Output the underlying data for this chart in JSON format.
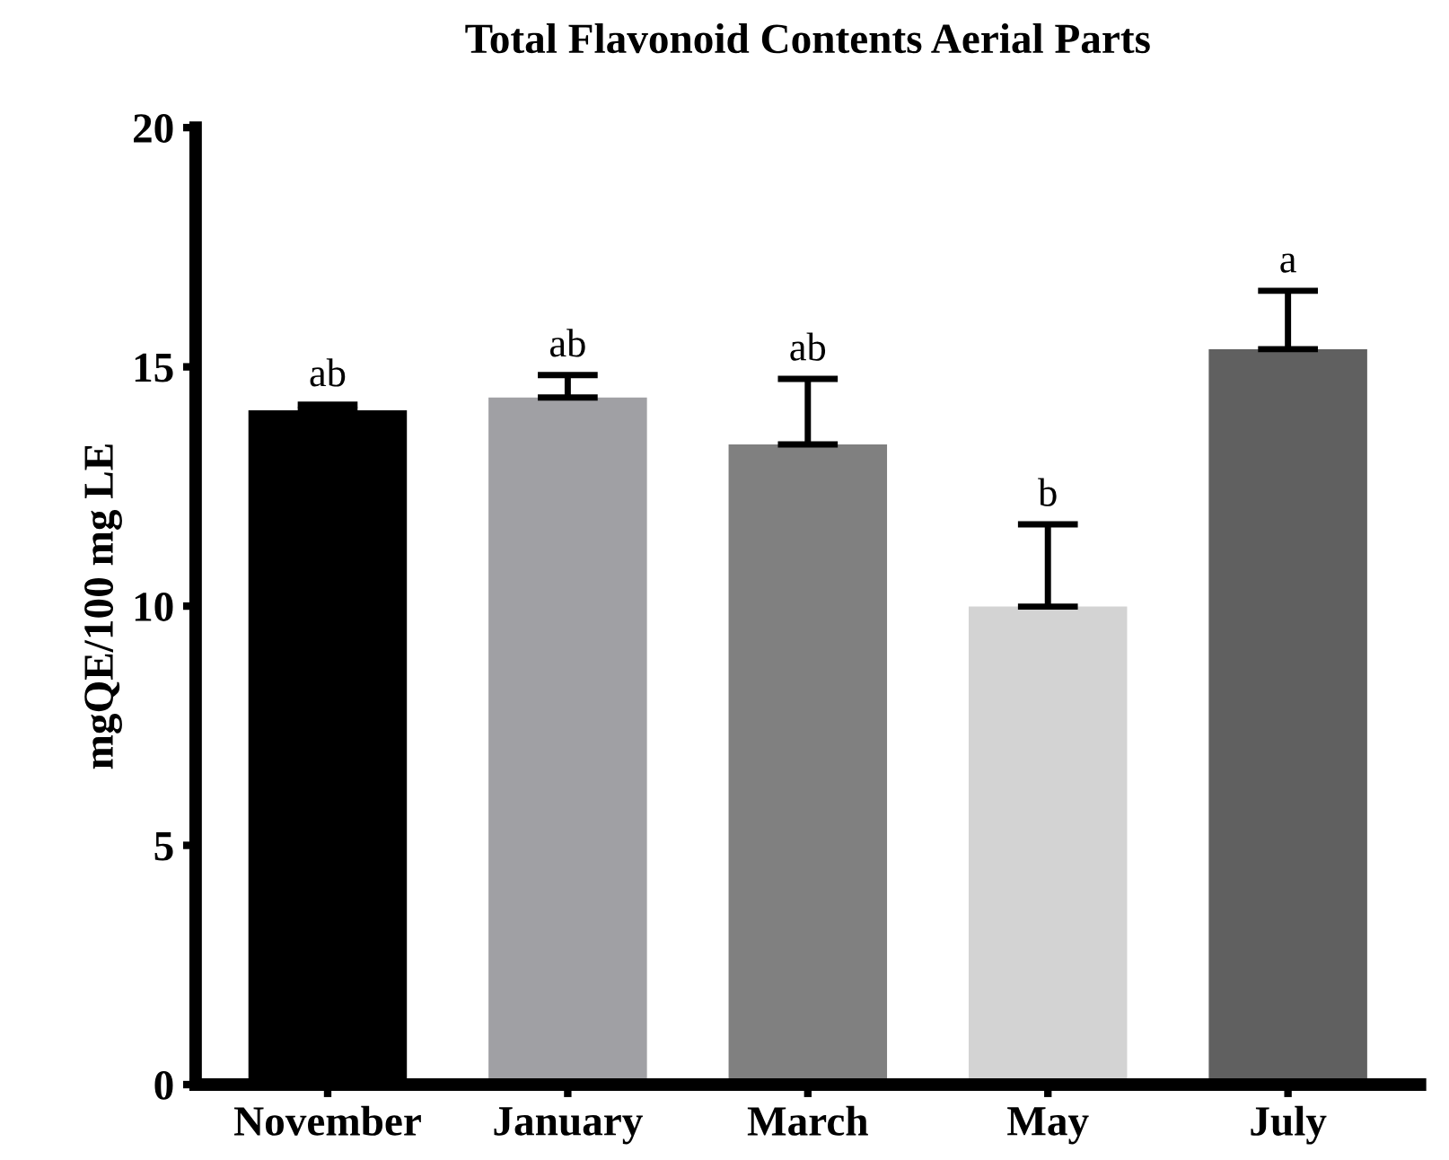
{
  "chart_data": {
    "type": "bar",
    "title": "Total Flavonoid Contents Aerial Parts",
    "ylabel": "mgQE/100 mg LE",
    "categories": [
      "November",
      "January",
      "March",
      "May",
      "July"
    ],
    "values": [
      14.09,
      14.36,
      13.38,
      9.99,
      15.37
    ],
    "colors": [
      "#000000",
      "#a0a0a4",
      "#808080",
      "#d3d3d3",
      "#606060"
    ],
    "errors": [
      [
        14.09,
        14.21
      ],
      [
        14.36,
        14.83
      ],
      [
        13.38,
        14.75
      ],
      [
        9.99,
        11.71
      ],
      [
        15.37,
        16.59
      ]
    ],
    "annotations": [
      "ab",
      "ab",
      "ab",
      "b",
      "a"
    ],
    "ylim": [
      0,
      20
    ],
    "yticks": [
      0,
      5,
      10,
      15,
      20
    ],
    "grid": false
  }
}
